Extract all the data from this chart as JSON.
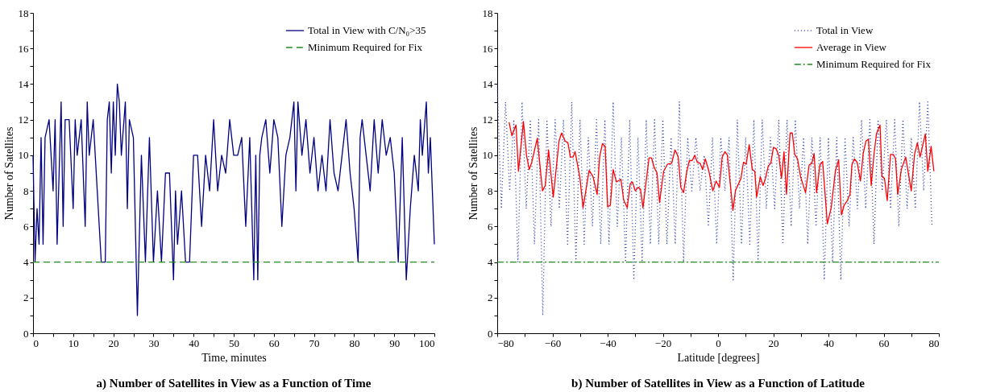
{
  "chart_data": [
    {
      "type": "line",
      "title": "a)  Number of Satellites in View as a Function of Time",
      "xlabel": "Time, minutes",
      "ylabel": "Number of Satellites",
      "xlim": [
        0,
        100
      ],
      "ylim": [
        0,
        18
      ],
      "xticks": [
        0,
        {
          "value": 5,
          "label": null
        },
        10,
        {
          "value": 15,
          "label": null
        },
        20,
        {
          "value": 25,
          "label": null
        },
        30,
        {
          "value": 35,
          "label": null
        },
        40,
        {
          "value": 45,
          "label": null
        },
        50,
        {
          "value": 55,
          "label": null
        },
        60,
        {
          "value": 65,
          "label": null
        },
        70,
        {
          "value": 75,
          "label": null
        },
        80,
        {
          "value": 85,
          "label": null
        },
        90,
        {
          "value": 95,
          "label": null
        },
        100
      ],
      "yticks": [
        0,
        {
          "value": 1,
          "label": null
        },
        2,
        {
          "value": 3,
          "label": null
        },
        4,
        {
          "value": 5,
          "label": null
        },
        6,
        {
          "value": 7,
          "label": null
        },
        8,
        {
          "value": 9,
          "label": null
        },
        10,
        {
          "value": 11,
          "label": null
        },
        12,
        {
          "value": 13,
          "label": null
        },
        14,
        {
          "value": 15,
          "label": null
        },
        16,
        {
          "value": 17,
          "label": null
        },
        18
      ],
      "legend": "top right",
      "line_style": "solid",
      "series": [
        {
          "name": "Total in View with C/N₀>35",
          "color": "#000080",
          "x": [
            0,
            0.5,
            1,
            1.5,
            2,
            2.5,
            3,
            4,
            5,
            5.5,
            6,
            7,
            7.5,
            8,
            9,
            10,
            10.5,
            11,
            12,
            13,
            13.5,
            14,
            15,
            16,
            17,
            18,
            18.5,
            19,
            19.5,
            20,
            20.5,
            21,
            21.5,
            22,
            23,
            23.5,
            24,
            25,
            26,
            27,
            28,
            29,
            30,
            31,
            32,
            33,
            34,
            35,
            35.5,
            36,
            37,
            38,
            39,
            40,
            41,
            42,
            43,
            44,
            45,
            46,
            47,
            48,
            49,
            50,
            51,
            52,
            53,
            54,
            55,
            55.5,
            56,
            56.5,
            57,
            58,
            59,
            60,
            61,
            62,
            63,
            64,
            65,
            65.5,
            66,
            67,
            68,
            69,
            70,
            71,
            72,
            73,
            74,
            75,
            76,
            77,
            78,
            79,
            80,
            81,
            81.5,
            82,
            83,
            84,
            85,
            86,
            87,
            88,
            89,
            90,
            91,
            92,
            93,
            94,
            95,
            96,
            96.5,
            97,
            98,
            98.5,
            99,
            99.5,
            100
          ],
          "values": [
            10,
            4,
            7,
            5,
            11,
            5,
            11,
            12,
            8,
            12,
            5,
            13,
            6,
            12,
            12,
            7,
            12,
            10,
            12,
            6,
            13,
            10,
            12,
            8,
            4,
            4,
            12,
            13,
            9,
            13,
            10,
            14,
            13,
            10,
            13,
            7,
            12,
            11,
            1,
            10,
            4,
            11,
            4,
            8,
            4,
            9,
            9,
            3,
            8,
            5,
            8,
            4,
            4,
            10,
            10,
            6,
            10,
            8,
            12,
            8,
            10,
            9,
            12,
            10,
            10,
            11,
            6,
            11,
            3,
            10,
            3,
            10,
            11,
            12,
            9,
            12,
            11,
            6,
            10,
            11,
            13,
            8,
            13,
            10,
            12,
            9,
            11,
            8,
            10,
            8,
            12,
            9,
            8,
            10,
            12,
            9,
            7,
            4,
            11,
            12,
            10,
            8,
            12,
            9,
            12,
            10,
            11,
            9,
            4,
            11,
            3,
            7,
            10,
            8,
            12,
            10,
            13,
            9,
            11,
            8,
            5
          ]
        }
      ],
      "ref_lines": [
        {
          "axis": "y",
          "value": 4,
          "label": "Minimum Required for Fix",
          "color": "#228b22",
          "line_style": "dashed"
        }
      ]
    },
    {
      "type": "line",
      "title": "b)  Number of Satellites in View as a Function of Latitude",
      "xlabel": "Latitude [degrees]",
      "ylabel": "Number of Satellites",
      "xlim": [
        -80,
        80
      ],
      "ylim": [
        0,
        18
      ],
      "xticks": [
        {
          "value": -80,
          "label": "−80"
        },
        {
          "value": -70,
          "label": null
        },
        {
          "value": -60,
          "label": "−60"
        },
        {
          "value": -50,
          "label": null
        },
        {
          "value": -40,
          "label": "−40"
        },
        {
          "value": -30,
          "label": null
        },
        {
          "value": -20,
          "label": "−20"
        },
        {
          "value": -10,
          "label": null
        },
        0,
        {
          "value": 10,
          "label": null
        },
        20,
        {
          "value": 30,
          "label": null
        },
        40,
        {
          "value": 50,
          "label": null
        },
        60,
        {
          "value": 70,
          "label": null
        },
        80
      ],
      "yticks": [
        0,
        {
          "value": 1,
          "label": null
        },
        2,
        {
          "value": 3,
          "label": null
        },
        4,
        {
          "value": 5,
          "label": null
        },
        6,
        {
          "value": 7,
          "label": null
        },
        8,
        {
          "value": 9,
          "label": null
        },
        10,
        {
          "value": 11,
          "label": null
        },
        12,
        {
          "value": 13,
          "label": null
        },
        14,
        {
          "value": 15,
          "label": null
        },
        16,
        {
          "value": 17,
          "label": null
        },
        18
      ],
      "legend": "top right",
      "line_style": "solid",
      "series": [
        {
          "name": "Total in View",
          "color": "#3040b0",
          "line_style": "dotted",
          "x": [
            -80,
            -78.5,
            -77,
            -75.5,
            -74,
            -72.5,
            -71,
            -69.5,
            -68,
            -66.5,
            -65,
            -63.5,
            -62,
            -60.5,
            -59,
            -57.5,
            -56,
            -54.5,
            -53,
            -51.5,
            -50,
            -48.5,
            -47,
            -45.5,
            -44,
            -42.5,
            -41,
            -39.5,
            -38,
            -36.5,
            -35,
            -33.5,
            -32,
            -30.5,
            -29,
            -27.5,
            -26,
            -24.5,
            -23,
            -21.5,
            -20,
            -18.5,
            -17,
            -15.5,
            -14,
            -12.5,
            -11,
            -9.5,
            -8,
            -6.5,
            -5,
            -3.5,
            -2,
            -0.5,
            1,
            2.5,
            4,
            5.5,
            7,
            8.5,
            10,
            11.5,
            13,
            14.5,
            16,
            17.5,
            19,
            20.5,
            22,
            23.5,
            25,
            26.5,
            28,
            29.5,
            31,
            32.5,
            34,
            35.5,
            37,
            38.5,
            40,
            41.5,
            43,
            44.5,
            46,
            47.5,
            49,
            50.5,
            52,
            53.5,
            55,
            56.5,
            58,
            59.5,
            61,
            62.5,
            64,
            65.5,
            67,
            68.5,
            70,
            71.5,
            73,
            74.5,
            76,
            77.5
          ],
          "values": [
            14,
            7,
            13,
            8,
            12,
            4,
            13,
            7,
            12,
            5,
            12,
            1,
            12,
            6,
            12,
            7,
            12,
            5,
            13,
            4,
            12,
            5,
            11,
            6,
            12,
            5,
            12,
            5,
            13,
            6,
            11,
            4,
            12,
            3,
            11,
            4,
            12,
            5,
            12,
            5,
            12,
            5,
            11,
            5,
            13,
            4,
            11,
            8,
            11,
            8,
            10,
            6,
            11,
            5,
            11,
            8,
            11,
            3,
            12,
            5,
            11,
            5,
            12,
            4,
            12,
            7,
            11,
            7,
            12,
            5,
            12,
            6,
            12,
            7,
            11,
            5,
            11,
            6,
            11,
            3,
            11,
            4,
            11,
            3,
            11,
            6,
            11,
            7,
            12,
            7,
            12,
            5,
            12,
            8,
            12,
            7,
            12,
            6,
            12,
            7,
            11,
            7,
            13,
            8,
            13,
            6
          ]
        },
        {
          "name": "Average in View",
          "color": "#ff0000",
          "x": [
            -75.7,
            -74.7,
            -73.2,
            -72.3,
            -70.5,
            -69.4,
            -68.4,
            -67.5,
            -65.5,
            -63.6,
            -62.6,
            -61.4,
            -59.7,
            -57.6,
            -56.7,
            -55.4,
            -54.4,
            -53.5,
            -52.5,
            -51.8,
            -50.1,
            -48.9,
            -46.7,
            -45.3,
            -43.8,
            -42.9,
            -41.9,
            -40.9,
            -40,
            -39,
            -38,
            -36.8,
            -35.2,
            -34.2,
            -32.9,
            -31.8,
            -31,
            -30,
            -28.9,
            -28.1,
            -27.2,
            -25,
            -24.1,
            -23.1,
            -22.1,
            -21.2,
            -19.7,
            -18.3,
            -16.8,
            -15.6,
            -14.4,
            -13.5,
            -12.5,
            -11.3,
            -10.4,
            -9.4,
            -8.4,
            -7.5,
            -6.5,
            -5.6,
            -4.6,
            -3.3,
            -1.9,
            -0.7,
            0.5,
            1.5,
            2.5,
            3.4,
            5.4,
            6.3,
            8.3,
            9.2,
            10.2,
            11.3,
            12.4,
            13.3,
            14,
            15.3,
            16.3,
            17.2,
            18.2,
            19.1,
            20.1,
            21.1,
            22,
            23,
            23.9,
            24.8,
            26.1,
            26.9,
            27.8,
            28.8,
            29.9,
            31.7,
            33,
            34,
            34.8,
            35.7,
            36.9,
            37.9,
            39.6,
            41,
            42.5,
            43.7,
            44.7,
            45.7,
            46.8,
            47.8,
            48.5,
            49.4,
            50.4,
            51.6,
            52.6,
            53.6,
            54.5,
            55.5,
            56.5,
            57.4,
            58.7,
            59.4,
            60.3,
            61.3,
            62.5,
            63.5,
            64.3,
            65.1,
            66.4,
            68,
            70,
            71.2,
            72.2,
            73.2,
            75.1,
            76,
            77.2,
            78.2
          ],
          "values": [
            11.85,
            11.1,
            11.7,
            9.1,
            11.9,
            10,
            9.2,
            9.6,
            10.95,
            8,
            8.3,
            10.3,
            7.65,
            10.8,
            11.25,
            10.8,
            10.7,
            9.9,
            9.9,
            10.2,
            8.8,
            7.05,
            9.15,
            8.8,
            7.8,
            9.9,
            10.65,
            10.5,
            7.1,
            7.2,
            9.2,
            8.5,
            8.65,
            7.5,
            7.05,
            8.4,
            8.5,
            8,
            8.2,
            8.1,
            7.05,
            9.85,
            9.85,
            9.3,
            9,
            7.35,
            9.1,
            9.5,
            9.55,
            10.3,
            9.9,
            8.2,
            7.9,
            9.1,
            9.7,
            9.7,
            10,
            9.6,
            9.55,
            9.2,
            9.8,
            9.1,
            8,
            8.55,
            8.2,
            9.9,
            10.2,
            10,
            6.9,
            8,
            8.7,
            9.6,
            9.5,
            10.6,
            9.2,
            9.1,
            7.65,
            8.8,
            8.3,
            8.7,
            9.4,
            9.55,
            10.45,
            10.35,
            10,
            8.7,
            10.2,
            7.8,
            11.25,
            11.25,
            10.05,
            9.8,
            8.8,
            7.9,
            9.45,
            9.55,
            10.1,
            7.9,
            9.45,
            9.65,
            6.15,
            7.05,
            9.1,
            9.75,
            6.65,
            7.2,
            7.45,
            7.8,
            9.45,
            9.8,
            9.6,
            8.55,
            10.1,
            10.8,
            10.9,
            8.3,
            10.05,
            11.2,
            11.7,
            8.8,
            8.7,
            7.45,
            10.05,
            10.05,
            9.8,
            7.8,
            9.2,
            9.9,
            8,
            10.05,
            10.7,
            9.9,
            11.2,
            9.1,
            10.5,
            9.1
          ]
        }
      ],
      "ref_lines": [
        {
          "axis": "y",
          "value": 4,
          "label": "Minimum Required for Fix",
          "color": "#228b22",
          "line_style": "dashdot"
        }
      ]
    }
  ]
}
